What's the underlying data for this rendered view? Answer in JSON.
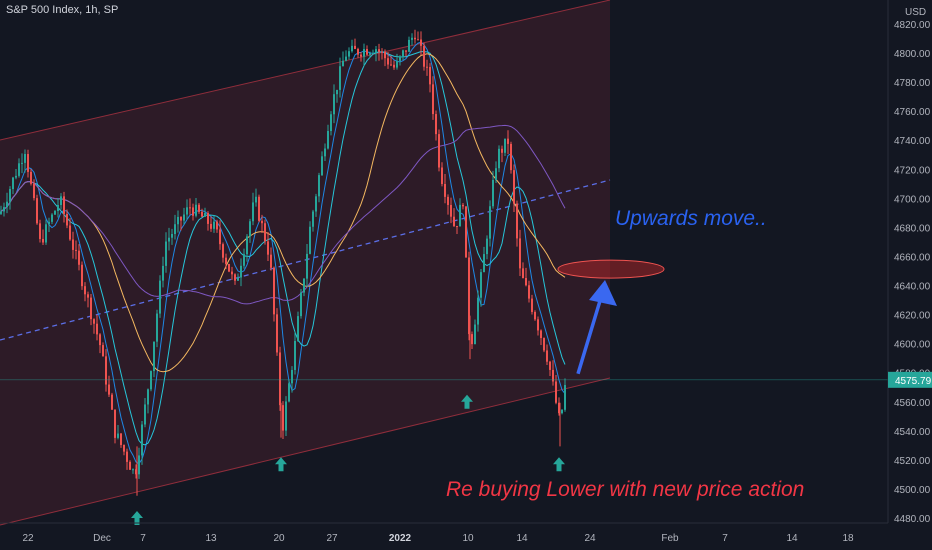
{
  "chart_data": {
    "type": "candlestick",
    "title": "S&P 500 Index, 1h, SP",
    "currency": "USD",
    "y_range": [
      4475,
      4830
    ],
    "y_ticks": [
      4480,
      4500,
      4520,
      4540,
      4560,
      4580,
      4600,
      4620,
      4640,
      4660,
      4680,
      4700,
      4720,
      4740,
      4760,
      4780,
      4800,
      4820
    ],
    "y_tick_labels": [
      "4480.00",
      "4500.00",
      "4520.00",
      "4540.00",
      "4560.00",
      "4580.00",
      "4600.00",
      "4620.00",
      "4640.00",
      "4660.00",
      "4680.00",
      "4700.00",
      "4720.00",
      "4740.00",
      "4760.00",
      "4780.00",
      "4800.00",
      "4820.00"
    ],
    "x_ticks": [
      "22",
      "Dec",
      "7",
      "13",
      "20",
      "27",
      "2022",
      "10",
      "14",
      "24",
      "Feb",
      "7",
      "14",
      "18"
    ],
    "last_price": 4575.79,
    "last_price_label": "4575.79",
    "key_closes": [
      {
        "x": 0,
        "close": 4690
      },
      {
        "x": 25,
        "close": 4735
      },
      {
        "x": 40,
        "close": 4670
      },
      {
        "x": 60,
        "close": 4700
      },
      {
        "x": 80,
        "close": 4650
      },
      {
        "x": 100,
        "close": 4600
      },
      {
        "x": 115,
        "close": 4540
      },
      {
        "x": 135,
        "close": 4510
      },
      {
        "x": 150,
        "close": 4580
      },
      {
        "x": 165,
        "close": 4670
      },
      {
        "x": 190,
        "close": 4695
      },
      {
        "x": 215,
        "close": 4680
      },
      {
        "x": 235,
        "close": 4640
      },
      {
        "x": 255,
        "close": 4700
      },
      {
        "x": 270,
        "close": 4660
      },
      {
        "x": 282,
        "close": 4540
      },
      {
        "x": 295,
        "close": 4600
      },
      {
        "x": 310,
        "close": 4680
      },
      {
        "x": 330,
        "close": 4760
      },
      {
        "x": 345,
        "close": 4800
      },
      {
        "x": 375,
        "close": 4805
      },
      {
        "x": 395,
        "close": 4790
      },
      {
        "x": 415,
        "close": 4815
      },
      {
        "x": 430,
        "close": 4780
      },
      {
        "x": 440,
        "close": 4720
      },
      {
        "x": 455,
        "close": 4680
      },
      {
        "x": 463,
        "close": 4700
      },
      {
        "x": 470,
        "close": 4595
      },
      {
        "x": 482,
        "close": 4650
      },
      {
        "x": 497,
        "close": 4730
      },
      {
        "x": 508,
        "close": 4740
      },
      {
        "x": 520,
        "close": 4650
      },
      {
        "x": 535,
        "close": 4620
      },
      {
        "x": 548,
        "close": 4590
      },
      {
        "x": 560,
        "close": 4545
      },
      {
        "x": 566,
        "close": 4576
      }
    ],
    "arrows_up": [
      {
        "x": 137,
        "price": 4480
      },
      {
        "x": 281,
        "price": 4517
      },
      {
        "x": 467,
        "price": 4560
      },
      {
        "x": 559,
        "price": 4517
      }
    ],
    "target_zone_price": 4652,
    "annotations": [
      "Upwards move..",
      "Re buying Lower with new price action"
    ]
  },
  "colors": {
    "background": "#131722",
    "channel_fill": "#8f2d3b",
    "up": "#26a69a",
    "down": "#ef5350",
    "ma_fast": "#1e88e5",
    "ma_mid": "#26c6da",
    "ma_slow": "#f4b860",
    "ma_long": "#7e57c2",
    "arrow": "#3a68f0",
    "label_blue": "#2a62f0",
    "label_red": "#f23645"
  }
}
